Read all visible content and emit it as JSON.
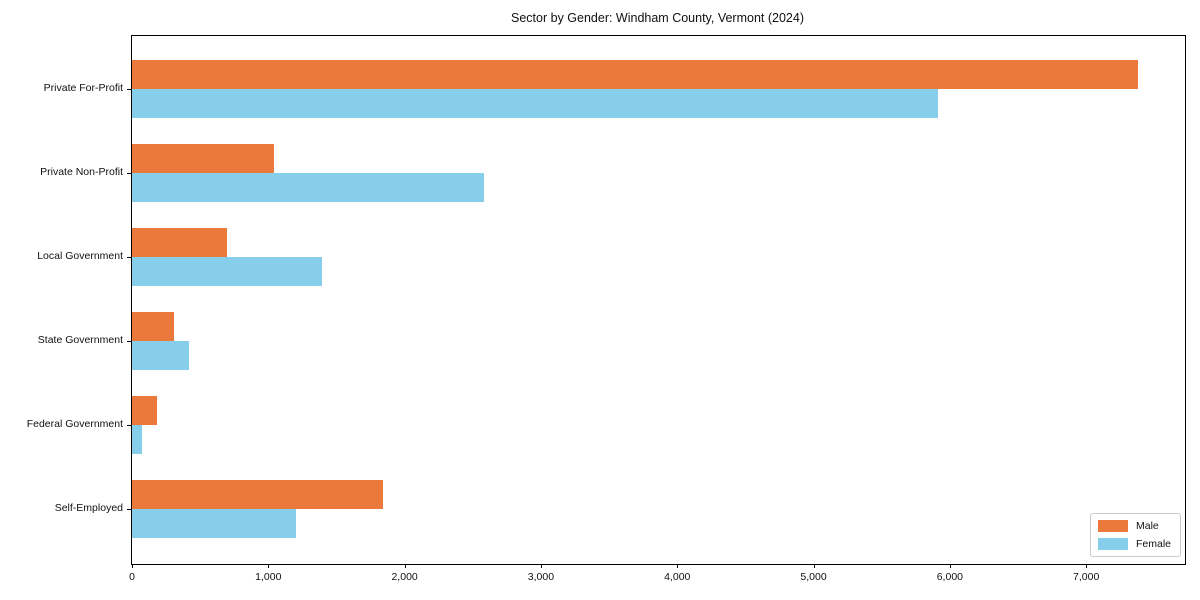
{
  "chart_data": {
    "type": "bar",
    "orientation": "horizontal",
    "title": "Sector by Gender: Windham County, Vermont (2024)",
    "categories": [
      "Private For-Profit",
      "Private Non-Profit",
      "Local Government",
      "State Government",
      "Federal Government",
      "Self-Employed"
    ],
    "series": [
      {
        "name": "Male",
        "color": "#ec793c",
        "values": [
          7380,
          1040,
          695,
          310,
          180,
          1845
        ]
      },
      {
        "name": "Female",
        "color": "#87ceeb",
        "values": [
          5915,
          2580,
          1395,
          415,
          75,
          1200
        ]
      }
    ],
    "xlabel": "",
    "ylabel": "",
    "xlim": [
      0,
      7725
    ],
    "xticks": [
      0,
      1000,
      2000,
      3000,
      4000,
      5000,
      6000,
      7000
    ],
    "xtick_labels": [
      "0",
      "1,000",
      "2,000",
      "3,000",
      "4,000",
      "5,000",
      "6,000",
      "7,000"
    ],
    "grid": false,
    "legend": {
      "position": "lower right",
      "entries": [
        "Male",
        "Female"
      ]
    }
  }
}
